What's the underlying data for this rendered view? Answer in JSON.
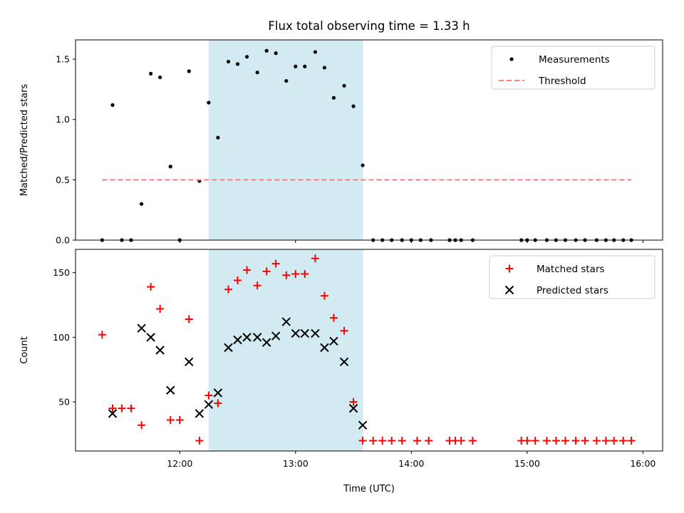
{
  "chart_data": {
    "title": "Flux total observing time = 1.33 h",
    "xlabel": "Time (UTC)",
    "x_unit": "hours UTC",
    "x_ticks": [
      {
        "value": 12,
        "label": "12:00"
      },
      {
        "value": 13,
        "label": "13:00"
      },
      {
        "value": 14,
        "label": "14:00"
      },
      {
        "value": 15,
        "label": "15:00"
      },
      {
        "value": 16,
        "label": "16:00"
      }
    ],
    "xlim": [
      11.1,
      16.17
    ],
    "highlight_span": {
      "start": 12.25,
      "end": 13.583,
      "color": "#add8e6"
    },
    "panels": [
      {
        "type": "scatter",
        "ylabel": "Matched/Predicted stars",
        "ylim": [
          0,
          1.66
        ],
        "y_ticks": [
          {
            "value": 0.0,
            "label": "0.0"
          },
          {
            "value": 0.5,
            "label": "0.5"
          },
          {
            "value": 1.0,
            "label": "1.0"
          },
          {
            "value": 1.5,
            "label": "1.5"
          }
        ],
        "legend_position": "top-right",
        "series": [
          {
            "name": "Measurements",
            "marker": "dot",
            "color": "#000000",
            "x": [
              11.33,
              11.42,
              11.5,
              11.58,
              11.67,
              11.75,
              11.83,
              11.92,
              12.0,
              12.08,
              12.17,
              12.25,
              12.33,
              12.42,
              12.5,
              12.58,
              12.67,
              12.75,
              12.83,
              12.92,
              13.0,
              13.08,
              13.17,
              13.25,
              13.33,
              13.42,
              13.5,
              13.58,
              13.67,
              13.75,
              13.83,
              13.92,
              14.0,
              14.08,
              14.17,
              14.33,
              14.38,
              14.43,
              14.53,
              14.95,
              15.0,
              15.07,
              15.17,
              15.25,
              15.33,
              15.42,
              15.5,
              15.6,
              15.68,
              15.75,
              15.83,
              15.9
            ],
            "y": [
              0.0,
              1.12,
              0.0,
              0.0,
              0.3,
              1.38,
              1.35,
              0.61,
              0.0,
              1.4,
              0.49,
              1.14,
              0.85,
              1.48,
              1.46,
              1.52,
              1.39,
              1.57,
              1.55,
              1.32,
              1.44,
              1.44,
              1.56,
              1.43,
              1.18,
              1.28,
              1.11,
              0.62,
              0.0,
              0.0,
              0.0,
              0.0,
              0.0,
              0.0,
              0.0,
              0.0,
              0.0,
              0.0,
              0.0,
              0.0,
              0.0,
              0.0,
              0.0,
              0.0,
              0.0,
              0.0,
              0.0,
              0.0,
              0.0,
              0.0,
              0.0,
              0.0
            ]
          },
          {
            "name": "Threshold",
            "marker": "dashed-line",
            "color": "#ff7f7f",
            "x": [
              11.33,
              15.9
            ],
            "y": [
              0.5,
              0.5
            ]
          }
        ]
      },
      {
        "type": "scatter",
        "ylabel": "Count",
        "ylim": [
          12,
          168
        ],
        "y_ticks": [
          {
            "value": 50,
            "label": "50"
          },
          {
            "value": 100,
            "label": "100"
          },
          {
            "value": 150,
            "label": "150"
          }
        ],
        "legend_position": "top-right",
        "series": [
          {
            "name": "Matched stars",
            "marker": "plus",
            "color": "#ff0000",
            "x": [
              11.33,
              11.42,
              11.5,
              11.58,
              11.67,
              11.75,
              11.83,
              11.92,
              12.0,
              12.08,
              12.17,
              12.25,
              12.33,
              12.42,
              12.5,
              12.58,
              12.67,
              12.75,
              12.83,
              12.92,
              13.0,
              13.08,
              13.17,
              13.25,
              13.33,
              13.42,
              13.5,
              13.58,
              13.67,
              13.75,
              13.83,
              13.92,
              14.05,
              14.15,
              14.33,
              14.38,
              14.43,
              14.53,
              14.95,
              15.0,
              15.07,
              15.17,
              15.25,
              15.33,
              15.42,
              15.5,
              15.6,
              15.68,
              15.75,
              15.83,
              15.9
            ],
            "y": [
              102,
              45,
              45,
              45,
              32,
              139,
              122,
              36,
              36,
              114,
              20,
              55,
              49,
              137,
              144,
              152,
              140,
              151,
              157,
              148,
              149,
              149,
              161,
              132,
              115,
              105,
              50,
              20,
              20,
              20,
              20,
              20,
              20,
              20,
              20,
              20,
              20,
              20,
              20,
              20,
              20,
              20,
              20,
              20,
              20,
              20,
              20,
              20,
              20,
              20,
              20
            ]
          },
          {
            "name": "Predicted stars",
            "marker": "x",
            "color": "#000000",
            "x": [
              11.42,
              11.67,
              11.75,
              11.83,
              11.92,
              12.08,
              12.17,
              12.25,
              12.33,
              12.42,
              12.5,
              12.58,
              12.67,
              12.75,
              12.83,
              12.92,
              13.0,
              13.08,
              13.17,
              13.25,
              13.33,
              13.42,
              13.5,
              13.58
            ],
            "y": [
              41,
              107,
              100,
              90,
              59,
              81,
              41,
              48,
              57,
              92,
              98,
              100,
              100,
              96,
              101,
              112,
              103,
              103,
              103,
              92,
              97,
              81,
              45,
              32
            ]
          }
        ]
      }
    ]
  }
}
